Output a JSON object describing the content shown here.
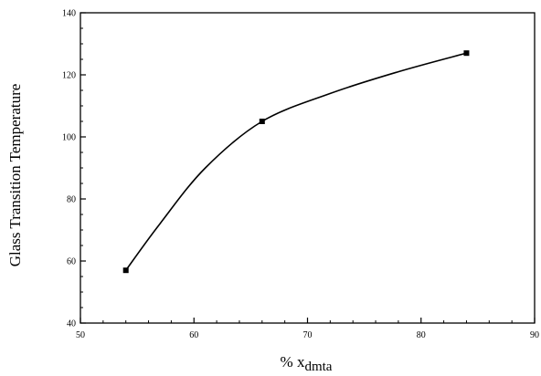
{
  "chart_data": {
    "type": "line",
    "title": "",
    "xlabel": "% x",
    "xlabel_sub": "dmta",
    "ylabel": "Glass Transition Temperature",
    "xlim": [
      50,
      90
    ],
    "ylim": [
      40,
      140
    ],
    "xticks": [
      50,
      60,
      70,
      80,
      90
    ],
    "yticks": [
      40,
      60,
      80,
      100,
      120,
      140
    ],
    "grid": false,
    "series": [
      {
        "x": [
          54,
          66,
          84
        ],
        "y": [
          57,
          105,
          127
        ]
      }
    ],
    "curve_shape": [
      {
        "x": 54,
        "y": 57
      },
      {
        "x": 57,
        "y": 72
      },
      {
        "x": 61,
        "y": 90
      },
      {
        "x": 66,
        "y": 105
      },
      {
        "x": 72,
        "y": 114
      },
      {
        "x": 78,
        "y": 121
      },
      {
        "x": 84,
        "y": 127
      }
    ]
  }
}
